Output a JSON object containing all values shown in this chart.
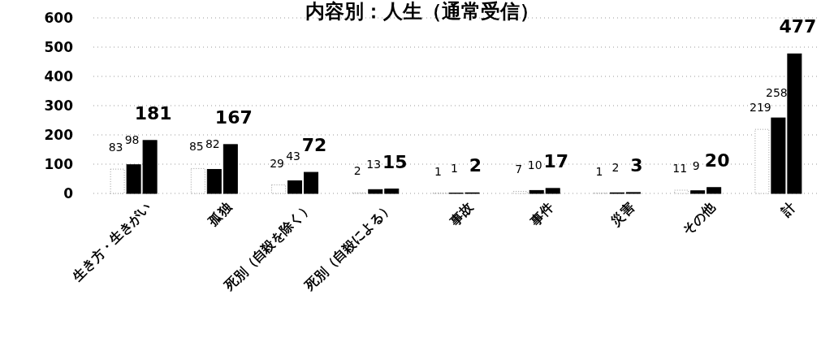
{
  "chart_data": {
    "type": "bar",
    "title": "内容別：人生（通常受信）",
    "categories": [
      "生き方・生きがい",
      "孤独",
      "死別（自殺を除く）",
      "死別（自殺による）",
      "事故",
      "事件",
      "災害",
      "その他",
      "計"
    ],
    "series": [
      {
        "color": "#ffffff",
        "values": [
          83,
          85,
          29,
          2,
          1,
          7,
          1,
          11,
          219
        ]
      },
      {
        "color": "#000000",
        "values": [
          98,
          82,
          43,
          13,
          1,
          10,
          2,
          9,
          258
        ]
      },
      {
        "color": "#000000",
        "values": [
          181,
          167,
          72,
          15,
          2,
          17,
          3,
          20,
          477
        ]
      }
    ],
    "ylim": [
      0,
      600
    ],
    "yticks": [
      0,
      100,
      200,
      300,
      400,
      500,
      600
    ],
    "grid": "y",
    "data_labels": true
  }
}
